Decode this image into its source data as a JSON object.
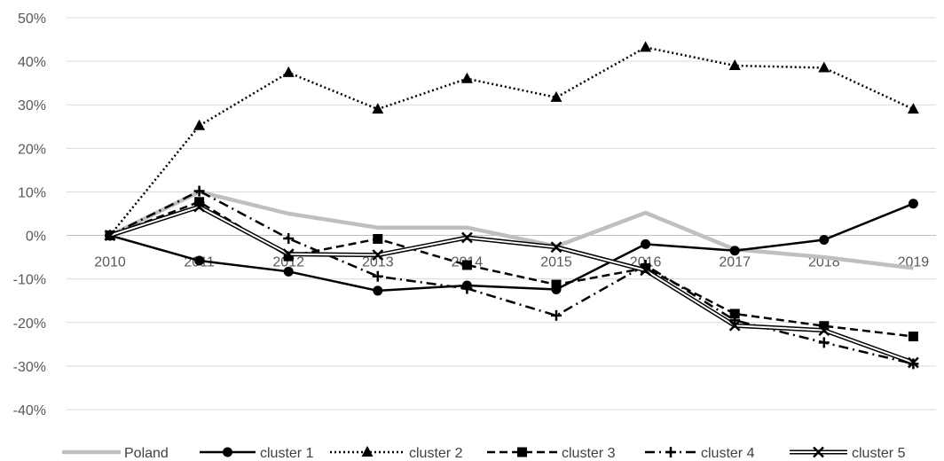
{
  "chart_data": {
    "type": "line",
    "title": "",
    "xlabel": "",
    "ylabel": "",
    "categories": [
      "2010",
      "2011",
      "2012",
      "2013",
      "2014",
      "2015",
      "2016",
      "2017",
      "2018",
      "2019"
    ],
    "ylim": [
      -0.4,
      0.5
    ],
    "y_ticks": [
      0.5,
      0.4,
      0.3,
      0.2,
      0.1,
      0,
      -0.1,
      -0.2,
      -0.3,
      -0.4
    ],
    "y_tick_labels": [
      "50%",
      "40%",
      "30%",
      "20%",
      "10%",
      "0%",
      "-10%",
      "-20%",
      "-30%",
      "-40%"
    ],
    "grid": "horizontal",
    "legend_position": "bottom",
    "series": [
      {
        "name": "Poland",
        "values": [
          0,
          0.1,
          0.05,
          0.018,
          0.018,
          -0.025,
          0.052,
          -0.032,
          -0.05,
          -0.075
        ],
        "color": "#bfbfbf",
        "style": "solid-thick",
        "marker": "none"
      },
      {
        "name": "cluster 1",
        "values": [
          0,
          -0.058,
          -0.083,
          -0.127,
          -0.115,
          -0.124,
          -0.02,
          -0.035,
          -0.01,
          0.073
        ],
        "color": "#000000",
        "style": "solid",
        "marker": "circle"
      },
      {
        "name": "cluster 2",
        "values": [
          0,
          0.252,
          0.374,
          0.29,
          0.36,
          0.317,
          0.432,
          0.39,
          0.385,
          0.29
        ],
        "color": "#000000",
        "style": "dotted",
        "marker": "triangle"
      },
      {
        "name": "cluster 3",
        "values": [
          0,
          0.077,
          -0.048,
          -0.008,
          -0.068,
          -0.113,
          -0.075,
          -0.18,
          -0.208,
          -0.232
        ],
        "color": "#000000",
        "style": "dashed",
        "marker": "square"
      },
      {
        "name": "cluster 4",
        "values": [
          0,
          0.102,
          -0.007,
          -0.094,
          -0.122,
          -0.184,
          -0.068,
          -0.195,
          -0.246,
          -0.295
        ],
        "color": "#000000",
        "style": "dashdot",
        "marker": "plus"
      },
      {
        "name": "cluster 5",
        "values": [
          0,
          0.066,
          -0.043,
          -0.045,
          -0.005,
          -0.027,
          -0.08,
          -0.207,
          -0.218,
          -0.292
        ],
        "color": "#000000",
        "style": "double",
        "marker": "x"
      }
    ]
  }
}
